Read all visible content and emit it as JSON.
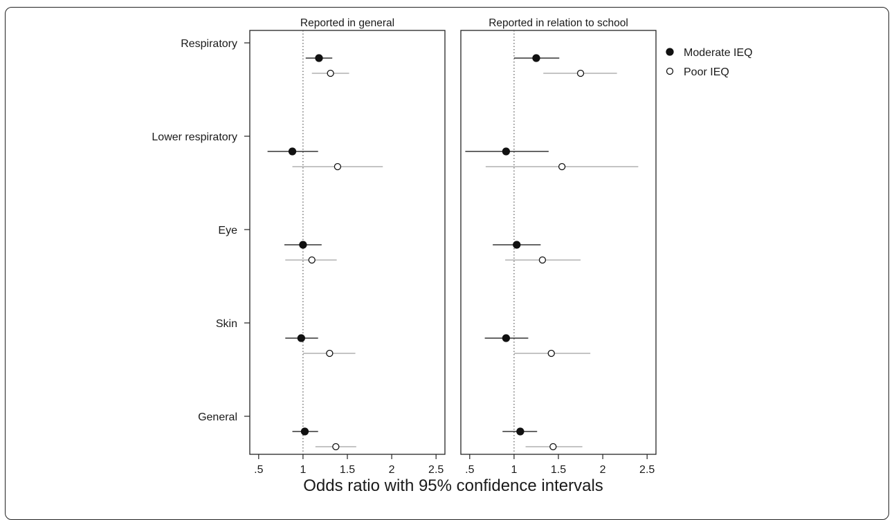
{
  "colors": {
    "moderate": "#111111",
    "poor": "#ffffff",
    "moderate_ci": "#333333",
    "poor_ci": "#b0b0b0",
    "reference_line": "#555555"
  },
  "chart_data": {
    "type": "scatter",
    "subtype": "forest-plot",
    "xlabel": "Odds ratio with 95% confidence intervals",
    "xlim": [
      0.4,
      2.6
    ],
    "x_ticks": [
      0.5,
      1,
      1.5,
      2,
      2.5
    ],
    "x_tick_labels": [
      ".5",
      "1",
      "1.5",
      "2",
      "2.5"
    ],
    "reference_line": 1,
    "categories": [
      "Respiratory",
      "Lower respiratory",
      "Eye",
      "Skin",
      "General"
    ],
    "legend": {
      "position": "top-right",
      "entries": [
        {
          "label": "Moderate IEQ",
          "marker": "filled-circle"
        },
        {
          "label": "Poor IEQ",
          "marker": "open-circle"
        }
      ]
    },
    "panels": [
      {
        "title": "Reported in general",
        "series": [
          {
            "name": "Moderate IEQ",
            "points": [
              {
                "category": "Respiratory",
                "or": 1.18,
                "lo": 1.03,
                "hi": 1.33
              },
              {
                "category": "Lower respiratory",
                "or": 0.88,
                "lo": 0.6,
                "hi": 1.17
              },
              {
                "category": "Eye",
                "or": 1.0,
                "lo": 0.79,
                "hi": 1.21
              },
              {
                "category": "Skin",
                "or": 0.98,
                "lo": 0.8,
                "hi": 1.17
              },
              {
                "category": "General",
                "or": 1.02,
                "lo": 0.88,
                "hi": 1.17
              }
            ]
          },
          {
            "name": "Poor IEQ",
            "points": [
              {
                "category": "Respiratory",
                "or": 1.31,
                "lo": 1.1,
                "hi": 1.52
              },
              {
                "category": "Lower respiratory",
                "or": 1.39,
                "lo": 0.88,
                "hi": 1.9
              },
              {
                "category": "Eye",
                "or": 1.1,
                "lo": 0.8,
                "hi": 1.38
              },
              {
                "category": "Skin",
                "or": 1.3,
                "lo": 1.0,
                "hi": 1.59
              },
              {
                "category": "General",
                "or": 1.37,
                "lo": 1.14,
                "hi": 1.6
              }
            ]
          }
        ]
      },
      {
        "title": "Reported in relation to school",
        "series": [
          {
            "name": "Moderate IEQ",
            "points": [
              {
                "category": "Respiratory",
                "or": 1.25,
                "lo": 1.0,
                "hi": 1.51
              },
              {
                "category": "Lower respiratory",
                "or": 0.91,
                "lo": 0.45,
                "hi": 1.39
              },
              {
                "category": "Eye",
                "or": 1.03,
                "lo": 0.76,
                "hi": 1.3
              },
              {
                "category": "Skin",
                "or": 0.91,
                "lo": 0.67,
                "hi": 1.16
              },
              {
                "category": "General",
                "or": 1.07,
                "lo": 0.87,
                "hi": 1.26
              }
            ]
          },
          {
            "name": "Poor IEQ",
            "points": [
              {
                "category": "Respiratory",
                "or": 1.75,
                "lo": 1.33,
                "hi": 2.16
              },
              {
                "category": "Lower respiratory",
                "or": 1.54,
                "lo": 0.68,
                "hi": 2.4
              },
              {
                "category": "Eye",
                "or": 1.32,
                "lo": 0.9,
                "hi": 1.75
              },
              {
                "category": "Skin",
                "or": 1.42,
                "lo": 1.0,
                "hi": 1.86
              },
              {
                "category": "General",
                "or": 1.44,
                "lo": 1.13,
                "hi": 1.77
              }
            ]
          }
        ]
      }
    ]
  }
}
